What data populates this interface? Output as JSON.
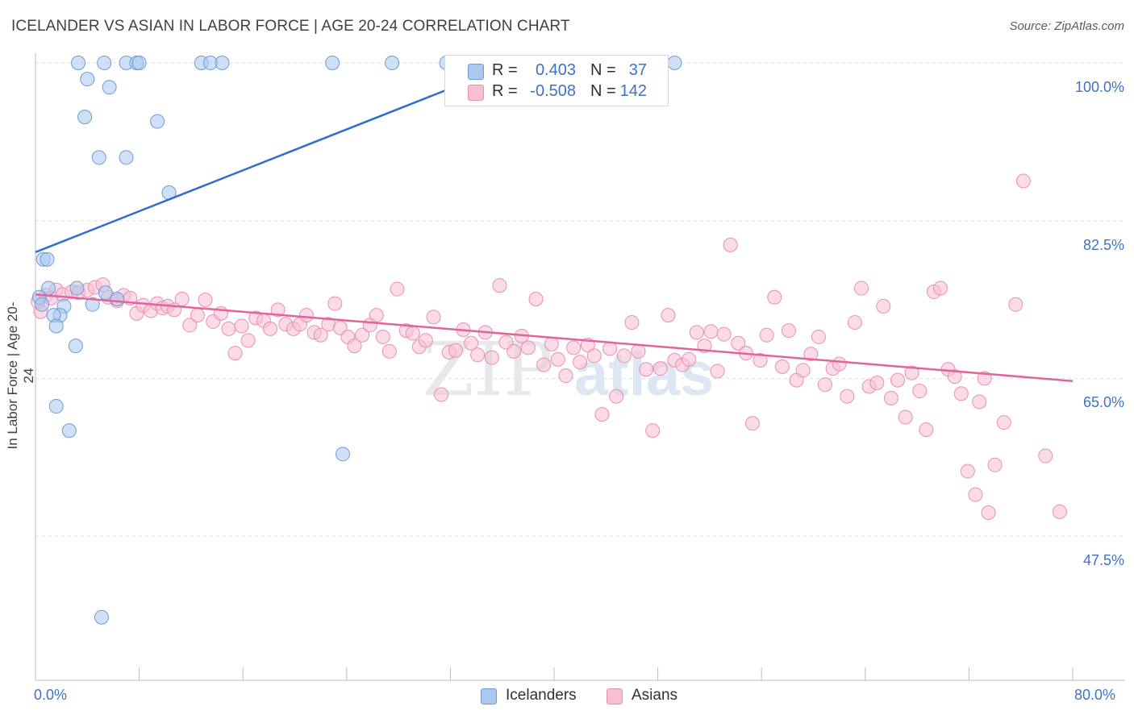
{
  "title": "ICELANDER VS ASIAN IN LABOR FORCE | AGE 20-24 CORRELATION CHART",
  "source": "Source: ZipAtlas.com",
  "watermark": {
    "zip": "ZIP",
    "atlas": "atlas"
  },
  "legend": {
    "r_label": "R =",
    "n_label": "N =",
    "icelanders": {
      "r": "0.403",
      "n": "37"
    },
    "asians": {
      "r": "-0.508",
      "n": "142"
    }
  },
  "bottom_legend": {
    "icelanders": "Icelanders",
    "asians": "Asians"
  },
  "colors": {
    "icelanders_fill": "#aac8f0",
    "icelanders_stroke": "#6c9bd8",
    "icelanders_line": "#2f6ed0",
    "asians_fill": "#f7bfd2",
    "asians_stroke": "#eb8fb0",
    "asians_line": "#e0659a",
    "tick_text": "#3f72c4"
  },
  "chart_data": {
    "type": "scatter",
    "title": "ICELANDER VS ASIAN IN LABOR FORCE | AGE 20-24 CORRELATION CHART",
    "xlabel": "",
    "ylabel": "In Labor Force | Age 20-24",
    "xlim": [
      0,
      80
    ],
    "ylim": [
      31.5,
      100
    ],
    "x_tick_labels": [
      "0.0%",
      "80.0%"
    ],
    "y_ticks": [
      47.5,
      65.0,
      82.5,
      100.0
    ],
    "y_tick_labels": [
      "47.5%",
      "65.0%",
      "82.5%",
      "100.0%"
    ],
    "series": [
      {
        "name": "Icelanders",
        "r": 0.403,
        "n": 37,
        "trend": {
          "x": [
            0.0,
            37.0
          ],
          "y": [
            79.0,
            100.0
          ]
        },
        "points": [
          [
            3.3,
            100.0
          ],
          [
            5.3,
            100.0
          ],
          [
            7.0,
            100.0
          ],
          [
            7.8,
            100.0
          ],
          [
            8.0,
            100.0
          ],
          [
            12.8,
            100.0
          ],
          [
            13.5,
            100.0
          ],
          [
            14.4,
            100.0
          ],
          [
            22.9,
            100.0
          ],
          [
            27.5,
            100.0
          ],
          [
            31.7,
            100.0
          ],
          [
            49.3,
            100.0
          ],
          [
            4.0,
            98.2
          ],
          [
            5.7,
            97.3
          ],
          [
            3.8,
            94.0
          ],
          [
            9.4,
            93.5
          ],
          [
            4.9,
            89.5
          ],
          [
            7.0,
            89.5
          ],
          [
            10.3,
            85.6
          ],
          [
            0.6,
            78.2
          ],
          [
            0.9,
            78.2
          ],
          [
            1.0,
            75.0
          ],
          [
            2.2,
            73.0
          ],
          [
            4.4,
            73.2
          ],
          [
            1.9,
            72.0
          ],
          [
            1.4,
            72.0
          ],
          [
            5.4,
            74.5
          ],
          [
            3.2,
            75.0
          ],
          [
            1.6,
            70.8
          ],
          [
            3.1,
            68.6
          ],
          [
            1.6,
            61.9
          ],
          [
            2.6,
            59.2
          ],
          [
            23.7,
            56.6
          ],
          [
            5.1,
            38.5
          ],
          [
            0.3,
            74.0
          ],
          [
            0.5,
            73.2
          ],
          [
            6.3,
            73.8
          ]
        ]
      },
      {
        "name": "Asians",
        "r": -0.508,
        "n": 142,
        "trend": {
          "x": [
            0.0,
            80.0
          ],
          "y": [
            74.3,
            64.7
          ]
        },
        "points": [
          [
            0.2,
            73.5
          ],
          [
            0.8,
            74.2
          ],
          [
            1.2,
            73.9
          ],
          [
            1.6,
            74.8
          ],
          [
            2.1,
            74.3
          ],
          [
            2.8,
            74.6
          ],
          [
            3.3,
            74.5
          ],
          [
            4.0,
            74.8
          ],
          [
            4.6,
            75.1
          ],
          [
            5.2,
            75.4
          ],
          [
            5.6,
            74.0
          ],
          [
            6.3,
            73.6
          ],
          [
            6.8,
            74.2
          ],
          [
            7.3,
            73.9
          ],
          [
            7.8,
            72.2
          ],
          [
            8.3,
            73.1
          ],
          [
            8.9,
            72.5
          ],
          [
            9.4,
            73.3
          ],
          [
            9.8,
            72.8
          ],
          [
            10.2,
            73.0
          ],
          [
            10.7,
            72.6
          ],
          [
            11.3,
            73.8
          ],
          [
            11.9,
            70.9
          ],
          [
            12.5,
            72.0
          ],
          [
            13.1,
            73.7
          ],
          [
            13.7,
            71.3
          ],
          [
            14.3,
            72.2
          ],
          [
            14.9,
            70.5
          ],
          [
            15.4,
            67.8
          ],
          [
            15.9,
            70.8
          ],
          [
            16.4,
            69.2
          ],
          [
            17.0,
            71.7
          ],
          [
            17.6,
            71.4
          ],
          [
            18.1,
            70.5
          ],
          [
            18.7,
            72.6
          ],
          [
            19.3,
            71.0
          ],
          [
            19.9,
            70.5
          ],
          [
            20.4,
            71.0
          ],
          [
            20.9,
            72.0
          ],
          [
            21.5,
            70.1
          ],
          [
            22.0,
            69.8
          ],
          [
            22.6,
            71.0
          ],
          [
            23.1,
            73.3
          ],
          [
            23.5,
            70.6
          ],
          [
            24.1,
            69.6
          ],
          [
            24.6,
            68.6
          ],
          [
            25.2,
            69.8
          ],
          [
            25.8,
            70.9
          ],
          [
            26.3,
            72.0
          ],
          [
            26.8,
            69.6
          ],
          [
            27.3,
            68.0
          ],
          [
            27.9,
            74.9
          ],
          [
            28.6,
            70.3
          ],
          [
            29.1,
            70.0
          ],
          [
            29.6,
            68.5
          ],
          [
            30.1,
            69.2
          ],
          [
            30.7,
            71.8
          ],
          [
            31.3,
            63.2
          ],
          [
            31.9,
            67.9
          ],
          [
            32.4,
            68.1
          ],
          [
            33.0,
            70.4
          ],
          [
            33.6,
            68.9
          ],
          [
            34.1,
            67.6
          ],
          [
            34.7,
            70.1
          ],
          [
            35.2,
            67.3
          ],
          [
            35.8,
            75.3
          ],
          [
            36.3,
            69.0
          ],
          [
            36.9,
            68.0
          ],
          [
            37.5,
            69.7
          ],
          [
            38.0,
            68.4
          ],
          [
            38.6,
            73.8
          ],
          [
            39.2,
            66.5
          ],
          [
            39.8,
            68.8
          ],
          [
            40.3,
            67.1
          ],
          [
            40.9,
            65.3
          ],
          [
            41.5,
            68.4
          ],
          [
            42.0,
            66.8
          ],
          [
            42.6,
            68.7
          ],
          [
            43.1,
            67.5
          ],
          [
            43.7,
            61.0
          ],
          [
            44.3,
            68.3
          ],
          [
            44.8,
            63.0
          ],
          [
            45.4,
            67.5
          ],
          [
            46.0,
            71.2
          ],
          [
            46.5,
            68.0
          ],
          [
            47.1,
            66.0
          ],
          [
            47.6,
            59.2
          ],
          [
            48.2,
            66.1
          ],
          [
            48.8,
            72.0
          ],
          [
            49.3,
            67.0
          ],
          [
            49.9,
            66.5
          ],
          [
            50.4,
            67.1
          ],
          [
            51.0,
            70.1
          ],
          [
            51.6,
            68.6
          ],
          [
            52.1,
            70.2
          ],
          [
            52.6,
            65.8
          ],
          [
            53.1,
            69.9
          ],
          [
            53.6,
            79.8
          ],
          [
            54.2,
            68.9
          ],
          [
            54.8,
            67.8
          ],
          [
            55.3,
            60.0
          ],
          [
            55.9,
            67.0
          ],
          [
            56.4,
            69.8
          ],
          [
            57.0,
            74.0
          ],
          [
            57.6,
            66.3
          ],
          [
            58.1,
            70.3
          ],
          [
            58.7,
            64.8
          ],
          [
            59.2,
            65.9
          ],
          [
            59.8,
            67.7
          ],
          [
            60.4,
            69.6
          ],
          [
            60.9,
            64.3
          ],
          [
            61.5,
            66.1
          ],
          [
            62.0,
            66.6
          ],
          [
            62.6,
            63.0
          ],
          [
            63.2,
            71.2
          ],
          [
            63.7,
            75.0
          ],
          [
            64.3,
            64.1
          ],
          [
            64.9,
            64.5
          ],
          [
            65.4,
            73.0
          ],
          [
            66.0,
            62.8
          ],
          [
            66.5,
            64.8
          ],
          [
            67.1,
            60.7
          ],
          [
            67.6,
            65.6
          ],
          [
            68.2,
            63.6
          ],
          [
            68.7,
            59.3
          ],
          [
            69.3,
            74.6
          ],
          [
            69.8,
            75.0
          ],
          [
            70.4,
            66.0
          ],
          [
            70.9,
            65.2
          ],
          [
            71.4,
            63.3
          ],
          [
            71.9,
            54.7
          ],
          [
            72.5,
            52.1
          ],
          [
            72.8,
            62.4
          ],
          [
            73.2,
            65.0
          ],
          [
            73.5,
            50.1
          ],
          [
            74.0,
            55.4
          ],
          [
            74.7,
            60.1
          ],
          [
            75.6,
            73.2
          ],
          [
            76.2,
            86.9
          ],
          [
            77.9,
            56.4
          ],
          [
            79.0,
            50.2
          ],
          [
            0.4,
            72.4
          ]
        ]
      }
    ]
  }
}
